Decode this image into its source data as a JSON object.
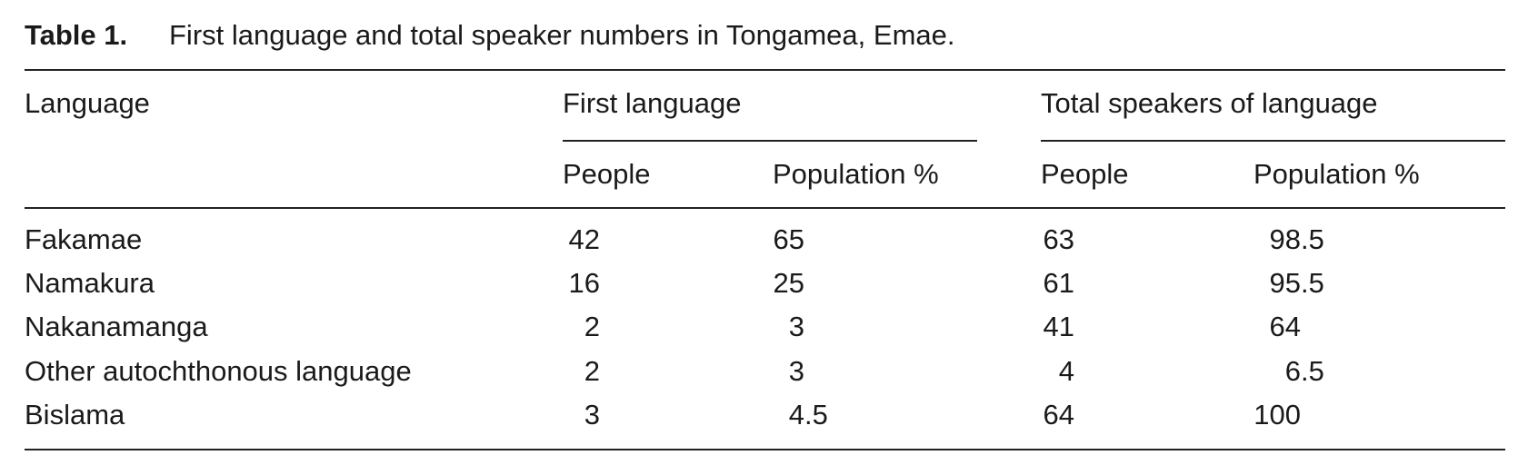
{
  "caption": {
    "label": "Table 1.",
    "text": "First language and total speaker numbers in Tongamea, Emae."
  },
  "table": {
    "header": {
      "language": "Language",
      "groups": [
        "First language",
        "Total speakers of language"
      ],
      "subheaders": [
        "People",
        "Population %",
        "People",
        "Population %"
      ]
    },
    "rows": [
      [
        "Fakamae",
        42,
        65,
        63,
        98.5
      ],
      [
        "Namakura",
        16,
        25,
        61,
        95.5
      ],
      [
        "Nakanamanga",
        2,
        3,
        41,
        64
      ],
      [
        "Other autochthonous language",
        2,
        3,
        4,
        6.5
      ],
      [
        "Bislama",
        3,
        4.5,
        64,
        100
      ]
    ]
  }
}
